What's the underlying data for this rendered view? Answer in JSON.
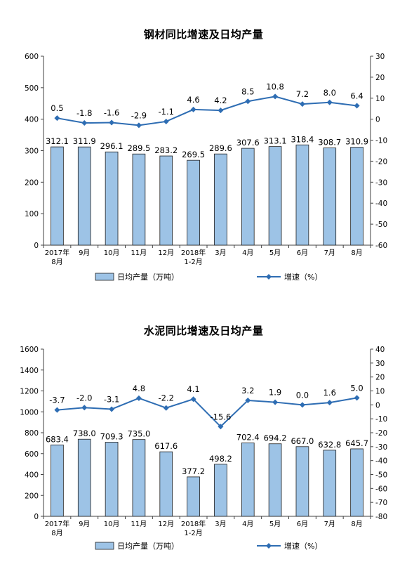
{
  "charts": [
    {
      "title": "钢材同比增速及日均产量",
      "legend_bar": "日均产量（万吨）",
      "legend_line": "增速（%）",
      "categories": [
        "2017年\n8月",
        "9月",
        "10月",
        "11月",
        "12月",
        "2018年\n1-2月",
        "3月",
        "4月",
        "5月",
        "6月",
        "7月",
        "8月"
      ],
      "bar_values": [
        312.1,
        311.9,
        296.1,
        289.5,
        283.2,
        269.5,
        289.6,
        307.6,
        313.1,
        318.4,
        308.7,
        310.9
      ],
      "line_values": [
        0.5,
        -1.8,
        -1.6,
        -2.9,
        -1.1,
        4.6,
        4.2,
        8.5,
        10.8,
        7.2,
        8.0,
        6.4
      ],
      "left_ticks": [
        0,
        100,
        200,
        300,
        400,
        500,
        600
      ],
      "right_ticks": [
        -60,
        -50,
        -40,
        -30,
        -20,
        -10,
        0,
        10,
        20,
        30
      ]
    },
    {
      "title": "水泥同比增速及日均产量",
      "legend_bar": "日均产量（万吨）",
      "legend_line": "增速（%）",
      "categories": [
        "2017年\n8月",
        "9月",
        "10月",
        "11月",
        "12月",
        "2018年\n1-2月",
        "3月",
        "4月",
        "5月",
        "6月",
        "7月",
        "8月"
      ],
      "bar_values": [
        683.4,
        738.0,
        709.3,
        735.0,
        617.6,
        377.2,
        498.2,
        702.4,
        694.2,
        667.0,
        632.8,
        645.7
      ],
      "line_values": [
        -3.7,
        -2.0,
        -3.1,
        4.8,
        -2.2,
        4.1,
        -15.6,
        3.2,
        1.9,
        0.0,
        1.6,
        5.0
      ],
      "left_ticks": [
        0,
        200,
        400,
        600,
        800,
        1000,
        1200,
        1400,
        1600
      ],
      "right_ticks": [
        -80,
        -70,
        -60,
        -50,
        -40,
        -30,
        -20,
        -10,
        0,
        10,
        20,
        30,
        40
      ]
    }
  ],
  "colors": {
    "bar_fill": "#9dc3e6",
    "bar_stroke": "#1f1f1f",
    "line": "#2e6db3",
    "axis": "#404040"
  },
  "chart_data": [
    {
      "type": "bar",
      "title": "钢材同比增速及日均产量",
      "categories": [
        "2017年8月",
        "9月",
        "10月",
        "11月",
        "12月",
        "2018年1-2月",
        "3月",
        "4月",
        "5月",
        "6月",
        "7月",
        "8月"
      ],
      "series": [
        {
          "name": "日均产量（万吨）",
          "type": "bar",
          "axis": "left",
          "values": [
            312.1,
            311.9,
            296.1,
            289.5,
            283.2,
            269.5,
            289.6,
            307.6,
            313.1,
            318.4,
            308.7,
            310.9
          ]
        },
        {
          "name": "增速（%）",
          "type": "line",
          "axis": "right",
          "values": [
            0.5,
            -1.8,
            -1.6,
            -2.9,
            -1.1,
            4.6,
            4.2,
            8.5,
            10.8,
            7.2,
            8.0,
            6.4
          ]
        }
      ],
      "ylim_left": [
        0,
        600
      ],
      "ylim_right": [
        -60,
        30
      ],
      "legend": "bottom",
      "grid": false
    },
    {
      "type": "bar",
      "title": "水泥同比增速及日均产量",
      "categories": [
        "2017年8月",
        "9月",
        "10月",
        "11月",
        "12月",
        "2018年1-2月",
        "3月",
        "4月",
        "5月",
        "6月",
        "7月",
        "8月"
      ],
      "series": [
        {
          "name": "日均产量（万吨）",
          "type": "bar",
          "axis": "left",
          "values": [
            683.4,
            738.0,
            709.3,
            735.0,
            617.6,
            377.2,
            498.2,
            702.4,
            694.2,
            667.0,
            632.8,
            645.7
          ]
        },
        {
          "name": "增速（%）",
          "type": "line",
          "axis": "right",
          "values": [
            -3.7,
            -2.0,
            -3.1,
            4.8,
            -2.2,
            4.1,
            -15.6,
            3.2,
            1.9,
            0.0,
            1.6,
            5.0
          ]
        }
      ],
      "ylim_left": [
        0,
        1600
      ],
      "ylim_right": [
        -80,
        40
      ],
      "legend": "bottom",
      "grid": false
    }
  ]
}
